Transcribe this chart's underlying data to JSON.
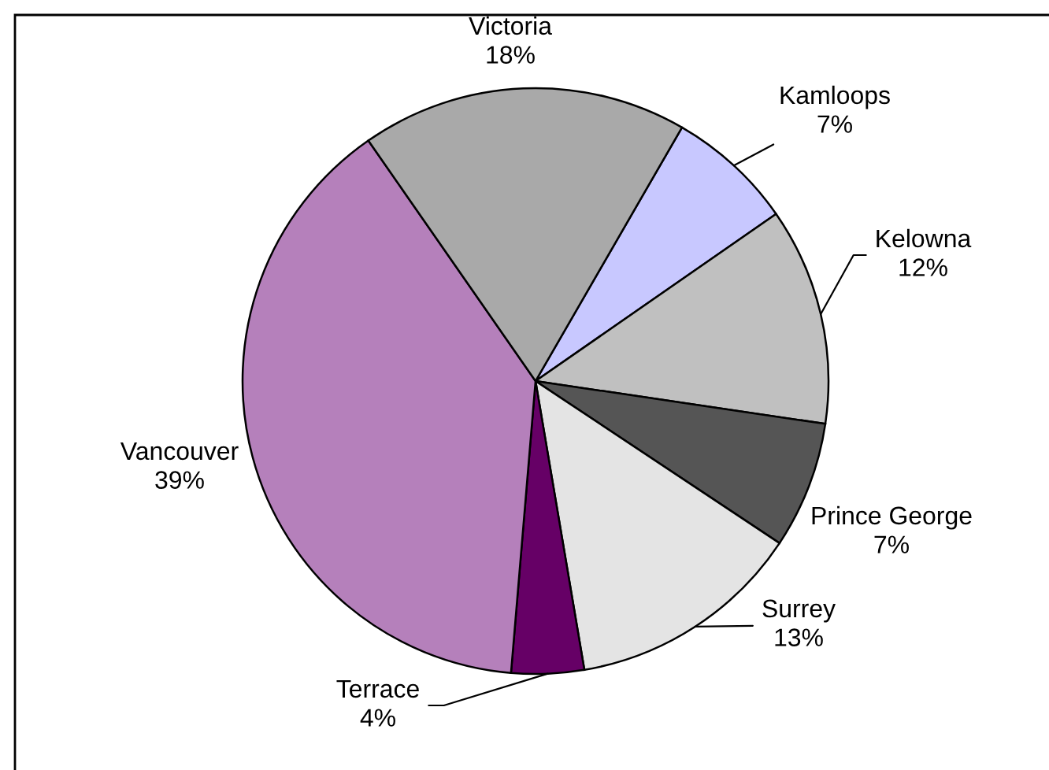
{
  "chart_data": {
    "type": "pie",
    "categories": [
      "Kamloops",
      "Kelowna",
      "Prince George",
      "Surrey",
      "Terrace",
      "Vancouver",
      "Victoria"
    ],
    "values": [
      7,
      12,
      7,
      13,
      4,
      39,
      18
    ],
    "value_labels": [
      "7%",
      "12%",
      "7%",
      "13%",
      "4%",
      "39%",
      "18%"
    ],
    "colors": [
      "#c8c8ff",
      "#c0c0c0",
      "#555555",
      "#e4e4e4",
      "#660066",
      "#b580bb",
      "#a9a9a9"
    ]
  }
}
